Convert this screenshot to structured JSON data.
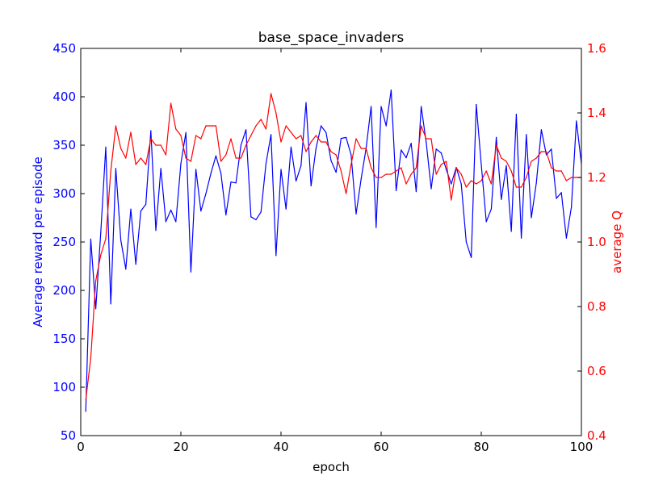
{
  "chart_data": {
    "type": "line",
    "title": "base_space_invaders",
    "xlabel": "epoch",
    "ylabel_left": "Average reward per episode",
    "ylabel_right": "average Q",
    "xlim": [
      0,
      100
    ],
    "ylim_left": [
      50,
      450
    ],
    "ylim_right": [
      0.4,
      1.6
    ],
    "xticks": [
      0,
      20,
      40,
      60,
      80,
      100
    ],
    "yticks_left": [
      50,
      100,
      150,
      200,
      250,
      300,
      350,
      400,
      450
    ],
    "yticks_right": [
      "0.4",
      "0.6",
      "0.8",
      "1.0",
      "1.2",
      "1.4",
      "1.6"
    ],
    "grid": false,
    "colors": {
      "left": "#0000ff",
      "right": "#ff0000"
    },
    "series": [
      {
        "axis": "left",
        "color": "#0000ff",
        "x": [
          1,
          2,
          3,
          4,
          5,
          6,
          7,
          8,
          9,
          10,
          11,
          12,
          13,
          14,
          15,
          16,
          17,
          18,
          19,
          20,
          21,
          22,
          23,
          24,
          25,
          26,
          27,
          28,
          29,
          30,
          31,
          32,
          33,
          34,
          35,
          36,
          37,
          38,
          39,
          40,
          41,
          42,
          43,
          44,
          45,
          46,
          47,
          48,
          49,
          50,
          51,
          52,
          53,
          54,
          55,
          56,
          57,
          58,
          59,
          60,
          61,
          62,
          63,
          64,
          65,
          66,
          67,
          68,
          69,
          70,
          71,
          72,
          73,
          74,
          75,
          76,
          77,
          78,
          79,
          80,
          81,
          82,
          83,
          84,
          85,
          86,
          87,
          88,
          89,
          90,
          91,
          92,
          93,
          94,
          95,
          96,
          97,
          98,
          99,
          100
        ],
        "values": [
          75,
          253,
          181,
          260,
          348,
          186,
          326,
          252,
          222,
          284,
          227,
          282,
          289,
          365,
          262,
          326,
          271,
          283,
          271,
          331,
          363,
          219,
          325,
          282,
          300,
          321,
          339,
          321,
          278,
          312,
          311,
          350,
          366,
          276,
          273,
          281,
          331,
          361,
          236,
          325,
          284,
          348,
          313,
          329,
          394,
          308,
          347,
          370,
          363,
          334,
          322,
          357,
          358,
          340,
          279,
          315,
          347,
          390,
          265,
          390,
          370,
          407,
          303,
          345,
          337,
          352,
          302,
          390,
          353,
          305,
          346,
          342,
          325,
          310,
          327,
          310,
          250,
          234,
          392,
          330,
          271,
          284,
          358,
          294,
          329,
          261,
          382,
          254,
          361,
          275,
          311,
          366,
          340,
          346,
          295,
          301,
          254,
          286,
          375,
          331
        ]
      },
      {
        "axis": "right",
        "color": "#ff0000",
        "x": [
          1,
          2,
          3,
          4,
          5,
          6,
          7,
          8,
          9,
          10,
          11,
          12,
          13,
          14,
          15,
          16,
          17,
          18,
          19,
          20,
          21,
          22,
          23,
          24,
          25,
          26,
          27,
          28,
          29,
          30,
          31,
          32,
          33,
          34,
          35,
          36,
          37,
          38,
          39,
          40,
          41,
          42,
          43,
          44,
          45,
          46,
          47,
          48,
          49,
          50,
          51,
          52,
          53,
          54,
          55,
          56,
          57,
          58,
          59,
          60,
          61,
          62,
          63,
          64,
          65,
          66,
          67,
          68,
          69,
          70,
          71,
          72,
          73,
          74,
          75,
          76,
          77,
          78,
          79,
          80,
          81,
          82,
          83,
          84,
          85,
          86,
          87,
          88,
          89,
          90,
          91,
          92,
          93,
          94,
          95,
          96,
          97,
          98,
          99,
          100
        ],
        "values": [
          0.51,
          0.64,
          0.88,
          0.96,
          1.01,
          1.22,
          1.36,
          1.29,
          1.26,
          1.34,
          1.24,
          1.26,
          1.24,
          1.32,
          1.3,
          1.3,
          1.27,
          1.43,
          1.35,
          1.33,
          1.26,
          1.25,
          1.33,
          1.32,
          1.36,
          1.36,
          1.36,
          1.25,
          1.27,
          1.32,
          1.26,
          1.26,
          1.3,
          1.33,
          1.36,
          1.38,
          1.35,
          1.46,
          1.4,
          1.31,
          1.36,
          1.34,
          1.32,
          1.33,
          1.28,
          1.31,
          1.33,
          1.31,
          1.31,
          1.28,
          1.27,
          1.22,
          1.15,
          1.24,
          1.32,
          1.29,
          1.29,
          1.23,
          1.2,
          1.2,
          1.21,
          1.21,
          1.22,
          1.23,
          1.18,
          1.21,
          1.23,
          1.36,
          1.32,
          1.32,
          1.21,
          1.24,
          1.25,
          1.13,
          1.23,
          1.21,
          1.17,
          1.19,
          1.18,
          1.19,
          1.22,
          1.18,
          1.3,
          1.26,
          1.25,
          1.22,
          1.17,
          1.17,
          1.2,
          1.25,
          1.26,
          1.28,
          1.28,
          1.23,
          1.22,
          1.22,
          1.19,
          1.2,
          1.2,
          1.2
        ]
      }
    ]
  }
}
